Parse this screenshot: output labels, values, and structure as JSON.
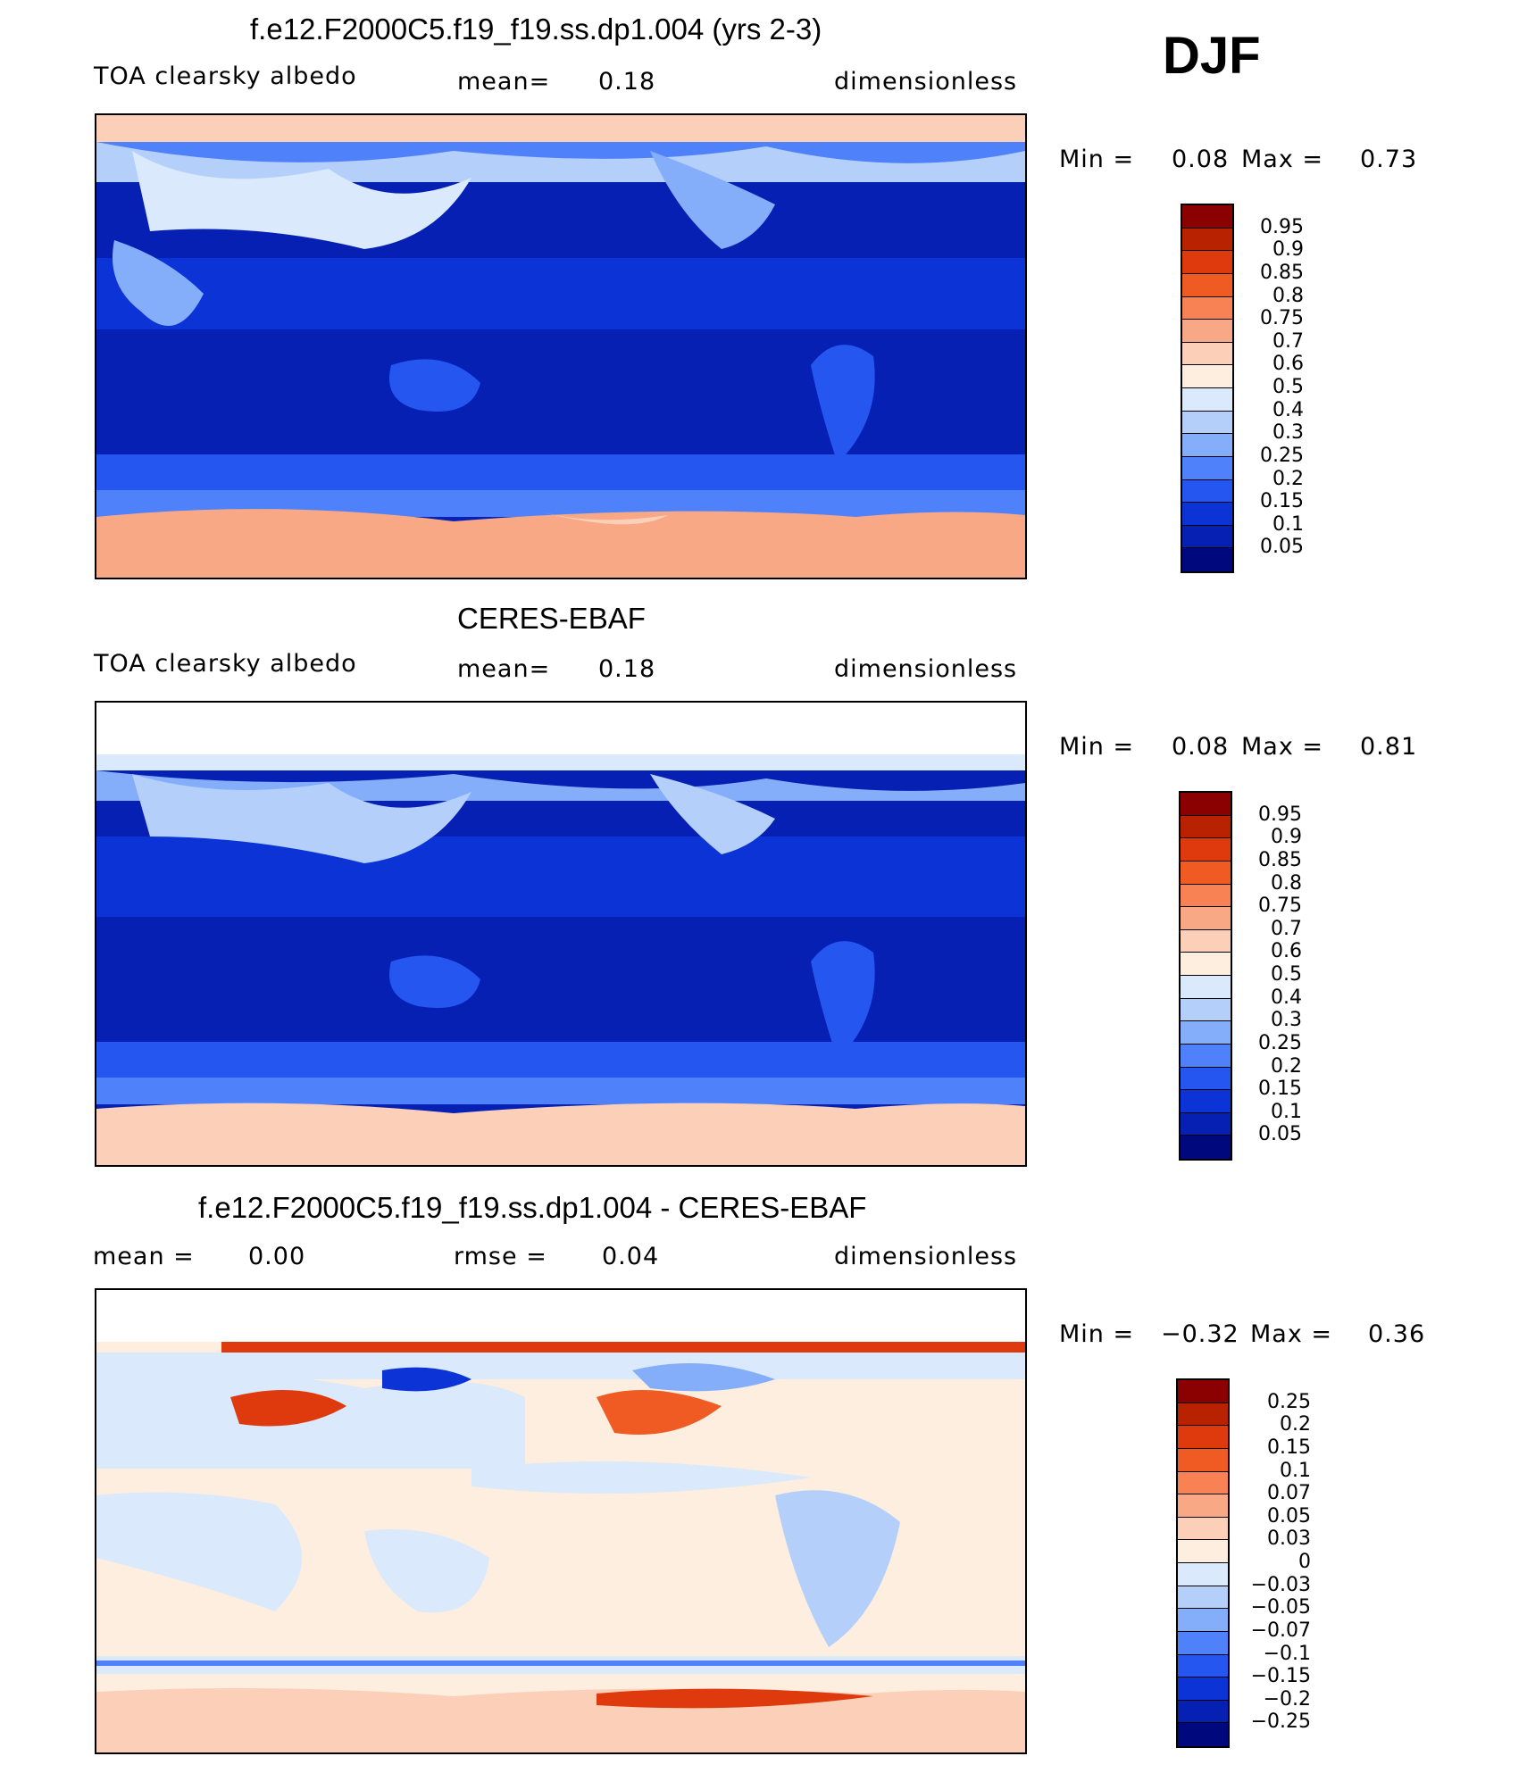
{
  "season": "DJF",
  "chart_data": [
    {
      "type": "heatmap",
      "title": "f.e12.F2000C5.f19_f19.ss.dp1.004 (yrs 2-3)",
      "variable": "TOA clearsky albedo",
      "mean_label": "mean=",
      "mean_value": "0.18",
      "units": "dimensionless",
      "min_label": "Min =",
      "min_value": "0.08",
      "max_label": "Max =",
      "max_value": "0.73",
      "colorbar_levels": [
        "0.95",
        "0.9",
        "0.85",
        "0.8",
        "0.75",
        "0.7",
        "0.6",
        "0.5",
        "0.4",
        "0.3",
        "0.25",
        "0.2",
        "0.15",
        "0.1",
        "0.05"
      ],
      "colorbar_colors": [
        "#8b0000",
        "#b82200",
        "#de3a0d",
        "#f05a23",
        "#f88253",
        "#f9a886",
        "#fcd0b8",
        "#fdeee0",
        "#dae9fb",
        "#b4d0fa",
        "#85aefa",
        "#4f82fa",
        "#2656f0",
        "#0b33d6",
        "#0620b4",
        "#00087e"
      ]
    },
    {
      "type": "heatmap",
      "title": "CERES-EBAF",
      "variable": "TOA clearsky albedo",
      "mean_label": "mean=",
      "mean_value": "0.18",
      "units": "dimensionless",
      "min_label": "Min =",
      "min_value": "0.08",
      "max_label": "Max =",
      "max_value": "0.81",
      "colorbar_levels": [
        "0.95",
        "0.9",
        "0.85",
        "0.8",
        "0.75",
        "0.7",
        "0.6",
        "0.5",
        "0.4",
        "0.3",
        "0.25",
        "0.2",
        "0.15",
        "0.1",
        "0.05"
      ],
      "colorbar_colors": [
        "#8b0000",
        "#b82200",
        "#de3a0d",
        "#f05a23",
        "#f88253",
        "#f9a886",
        "#fcd0b8",
        "#fdeee0",
        "#dae9fb",
        "#b4d0fa",
        "#85aefa",
        "#4f82fa",
        "#2656f0",
        "#0b33d6",
        "#0620b4",
        "#00087e"
      ]
    },
    {
      "type": "heatmap",
      "title": "f.e12.F2000C5.f19_f19.ss.dp1.004 - CERES-EBAF",
      "mean_label": "mean =",
      "mean_value": "0.00",
      "rmse_label": "rmse =",
      "rmse_value": "0.04",
      "units": "dimensionless",
      "min_label": "Min =",
      "min_value": "−0.32",
      "max_label": "Max =",
      "max_value": "0.36",
      "colorbar_levels": [
        "0.25",
        "0.2",
        "0.15",
        "0.1",
        "0.07",
        "0.05",
        "0.03",
        "0",
        "−0.03",
        "−0.05",
        "−0.07",
        "−0.1",
        "−0.15",
        "−0.2",
        "−0.25"
      ],
      "colorbar_colors": [
        "#8b0000",
        "#b82200",
        "#de3a0d",
        "#f05a23",
        "#f88253",
        "#f9a886",
        "#fcd0b8",
        "#fdeee0",
        "#dae9fb",
        "#b4d0fa",
        "#85aefa",
        "#4f82fa",
        "#2656f0",
        "#0b33d6",
        "#0620b4",
        "#00087e"
      ]
    }
  ]
}
